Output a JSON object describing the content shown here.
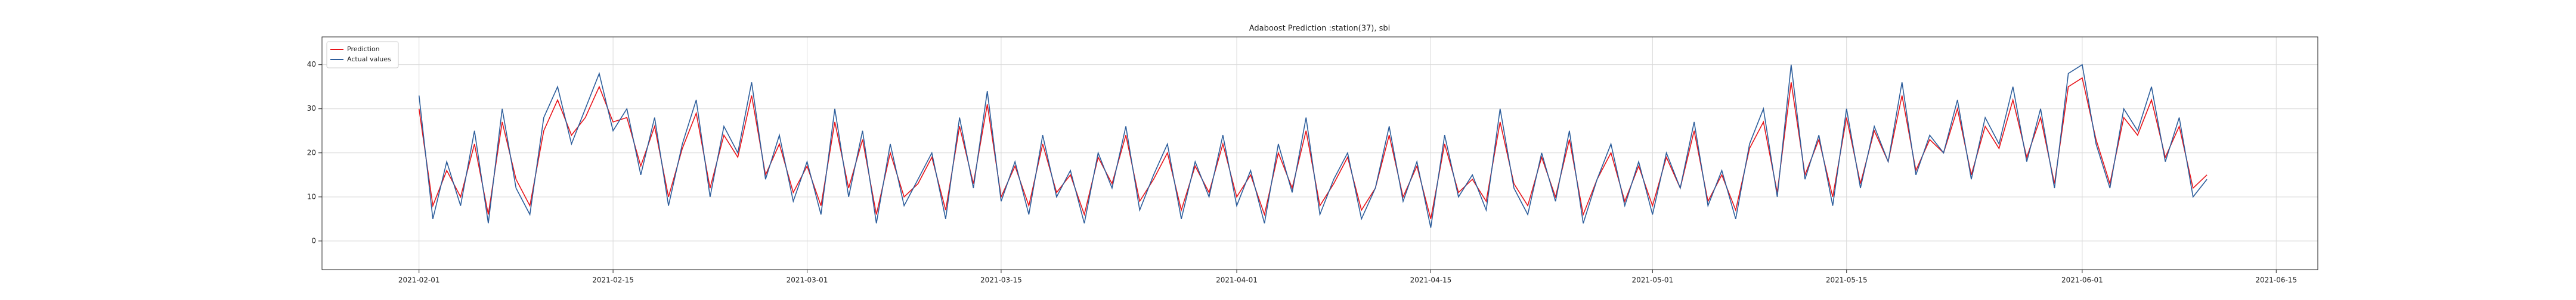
{
  "chart_data": {
    "type": "line",
    "title": "Adaboost Prediction :station(37), sbi",
    "x": [
      "2021-02-01",
      "2021-02-02",
      "2021-02-03",
      "2021-02-04",
      "2021-02-05",
      "2021-02-06",
      "2021-02-07",
      "2021-02-08",
      "2021-02-09",
      "2021-02-10",
      "2021-02-11",
      "2021-02-12",
      "2021-02-13",
      "2021-02-14",
      "2021-02-15",
      "2021-02-16",
      "2021-02-17",
      "2021-02-18",
      "2021-02-19",
      "2021-02-20",
      "2021-02-21",
      "2021-02-22",
      "2021-02-23",
      "2021-02-24",
      "2021-02-25",
      "2021-02-26",
      "2021-02-27",
      "2021-02-28",
      "2021-03-01",
      "2021-03-02",
      "2021-03-03",
      "2021-03-04",
      "2021-03-05",
      "2021-03-06",
      "2021-03-07",
      "2021-03-08",
      "2021-03-09",
      "2021-03-10",
      "2021-03-11",
      "2021-03-12",
      "2021-03-13",
      "2021-03-14",
      "2021-03-15",
      "2021-03-16",
      "2021-03-17",
      "2021-03-18",
      "2021-03-19",
      "2021-03-20",
      "2021-03-21",
      "2021-03-22",
      "2021-03-23",
      "2021-03-24",
      "2021-03-25",
      "2021-03-26",
      "2021-03-27",
      "2021-03-28",
      "2021-03-29",
      "2021-03-30",
      "2021-03-31",
      "2021-04-01",
      "2021-04-02",
      "2021-04-03",
      "2021-04-04",
      "2021-04-05",
      "2021-04-06",
      "2021-04-07",
      "2021-04-08",
      "2021-04-09",
      "2021-04-10",
      "2021-04-11",
      "2021-04-12",
      "2021-04-13",
      "2021-04-14",
      "2021-04-15",
      "2021-04-16",
      "2021-04-17",
      "2021-04-18",
      "2021-04-19",
      "2021-04-20",
      "2021-04-21",
      "2021-04-22",
      "2021-04-23",
      "2021-04-24",
      "2021-04-25",
      "2021-04-26",
      "2021-04-27",
      "2021-04-28",
      "2021-04-29",
      "2021-04-30",
      "2021-05-01",
      "2021-05-02",
      "2021-05-03",
      "2021-05-04",
      "2021-05-05",
      "2021-05-06",
      "2021-05-07",
      "2021-05-08",
      "2021-05-09",
      "2021-05-10",
      "2021-05-11",
      "2021-05-12",
      "2021-05-13",
      "2021-05-14",
      "2021-05-15",
      "2021-05-16",
      "2021-05-17",
      "2021-05-18",
      "2021-05-19",
      "2021-05-20",
      "2021-05-21",
      "2021-05-22",
      "2021-05-23",
      "2021-05-24",
      "2021-05-25",
      "2021-05-26",
      "2021-05-27",
      "2021-05-28",
      "2021-05-29",
      "2021-05-30",
      "2021-05-31",
      "2021-06-01",
      "2021-06-02",
      "2021-06-03",
      "2021-06-04",
      "2021-06-05",
      "2021-06-06",
      "2021-06-07",
      "2021-06-08",
      "2021-06-09",
      "2021-06-10"
    ],
    "series": [
      {
        "name": "Prediction",
        "color": "#e8141a",
        "values": [
          30,
          8,
          16,
          10,
          22,
          6,
          27,
          14,
          8,
          25,
          32,
          24,
          28,
          35,
          27,
          28,
          17,
          26,
          10,
          21,
          29,
          12,
          24,
          19,
          33,
          15,
          22,
          11,
          17,
          8,
          27,
          12,
          23,
          6,
          20,
          10,
          13,
          19,
          7,
          26,
          13,
          31,
          10,
          17,
          8,
          22,
          11,
          15,
          6,
          19,
          13,
          24,
          9,
          14,
          20,
          7,
          17,
          11,
          22,
          10,
          15,
          6,
          20,
          12,
          25,
          8,
          13,
          19,
          7,
          12,
          24,
          10,
          17,
          5,
          22,
          11,
          14,
          9,
          27,
          13,
          8,
          19,
          10,
          23,
          6,
          14,
          20,
          9,
          17,
          8,
          19,
          12,
          25,
          9,
          15,
          7,
          21,
          27,
          11,
          36,
          15,
          23,
          10,
          28,
          13,
          25,
          18,
          33,
          16,
          23,
          20,
          30,
          15,
          26,
          21,
          32,
          19,
          28,
          13,
          35,
          37,
          23,
          13,
          28,
          24,
          32,
          19,
          26,
          12,
          15
        ]
      },
      {
        "name": "Actual values",
        "color": "#2c5d9b",
        "values": [
          33,
          5,
          18,
          8,
          25,
          4,
          30,
          12,
          6,
          28,
          35,
          22,
          30,
          38,
          25,
          30,
          15,
          28,
          8,
          22,
          32,
          10,
          26,
          20,
          36,
          14,
          24,
          9,
          18,
          6,
          30,
          10,
          25,
          4,
          22,
          8,
          14,
          20,
          5,
          28,
          12,
          34,
          9,
          18,
          6,
          24,
          10,
          16,
          4,
          20,
          12,
          26,
          7,
          15,
          22,
          5,
          18,
          10,
          24,
          8,
          16,
          4,
          22,
          11,
          28,
          6,
          14,
          20,
          5,
          12,
          26,
          9,
          18,
          3,
          24,
          10,
          15,
          7,
          30,
          12,
          6,
          20,
          9,
          25,
          4,
          14,
          22,
          8,
          18,
          6,
          20,
          12,
          27,
          8,
          16,
          5,
          22,
          30,
          10,
          40,
          14,
          24,
          8,
          30,
          12,
          26,
          18,
          36,
          15,
          24,
          20,
          32,
          14,
          28,
          22,
          35,
          18,
          30,
          12,
          38,
          40,
          22,
          12,
          30,
          25,
          35,
          18,
          28,
          10,
          14
        ]
      }
    ],
    "xlim": [
      "2021-01-25",
      "2021-06-18"
    ],
    "xticks": [
      "2021-02-01",
      "2021-02-15",
      "2021-03-01",
      "2021-03-15",
      "2021-04-01",
      "2021-04-15",
      "2021-05-01",
      "2021-05-15",
      "2021-06-01",
      "2021-06-15"
    ],
    "ylim": [
      -6.5,
      46.3
    ],
    "yticks": [
      0,
      10,
      20,
      30,
      40
    ],
    "grid": true,
    "legend": "upper left"
  }
}
